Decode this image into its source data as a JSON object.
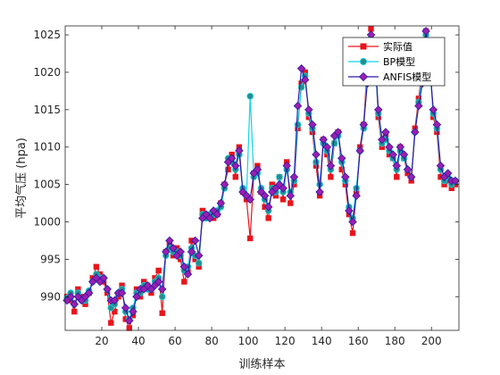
{
  "chart_data": {
    "type": "line",
    "xlabel": "训练样本",
    "ylabel": "平均气压 (hpa)",
    "xlim": [
      0,
      215
    ],
    "ylim": [
      985.5,
      1026.2
    ],
    "xticks": [
      20,
      40,
      60,
      80,
      100,
      120,
      140,
      160,
      180,
      200
    ],
    "yticks": [
      990,
      995,
      1000,
      1005,
      1010,
      1015,
      1020,
      1025
    ],
    "grid": false,
    "legend_position": "top-right",
    "series": [
      {
        "name": "实际值",
        "color": "#e8141c",
        "marker": "square",
        "line": "solid",
        "x": [
          1,
          3,
          5,
          7,
          9,
          11,
          13,
          15,
          17,
          19,
          21,
          23,
          25,
          27,
          29,
          31,
          33,
          35,
          37,
          39,
          41,
          43,
          45,
          47,
          49,
          51,
          53,
          55,
          57,
          59,
          61,
          63,
          65,
          67,
          69,
          71,
          73,
          75,
          77,
          79,
          81,
          83,
          85,
          87,
          89,
          91,
          93,
          95,
          97,
          99,
          101,
          103,
          105,
          107,
          109,
          111,
          113,
          115,
          117,
          119,
          121,
          123,
          125,
          127,
          129,
          131,
          133,
          135,
          137,
          139,
          141,
          143,
          145,
          147,
          149,
          151,
          153,
          155,
          157,
          159,
          161,
          163,
          165,
          167,
          169,
          171,
          173,
          175,
          177,
          179,
          181,
          183,
          185,
          187,
          189,
          191,
          193,
          195,
          197,
          199,
          201,
          203,
          205,
          207,
          209,
          211,
          213
        ],
        "values": [
          990.0,
          989.5,
          988.0,
          991.0,
          990.0,
          989.0,
          990.5,
          992.5,
          994.0,
          993.0,
          992.0,
          990.5,
          986.5,
          988.0,
          990.0,
          991.5,
          987.0,
          985.8,
          987.5,
          991.0,
          990.0,
          992.0,
          991.5,
          990.5,
          992.5,
          993.5,
          987.8,
          996.0,
          997.0,
          995.5,
          996.5,
          995.0,
          992.0,
          993.5,
          997.5,
          995.0,
          994.0,
          1001.5,
          1000.5,
          1001.0,
          1000.5,
          1001.0,
          1002.5,
          1005.0,
          1007.0,
          1009.0,
          1006.0,
          1010.0,
          1004.0,
          1003.0,
          997.8,
          1006.5,
          1007.5,
          1004.0,
          1002.0,
          1000.5,
          1005.0,
          1003.5,
          1006.0,
          1003.0,
          1008.0,
          1002.5,
          1005.0,
          1012.5,
          1018.5,
          1020.0,
          1014.0,
          1012.0,
          1007.5,
          1003.5,
          1011.0,
          1009.0,
          1006.0,
          1010.5,
          1012.0,
          1007.0,
          1005.0,
          1001.0,
          998.5,
          1004.0,
          1010.0,
          1013.0,
          1021.0,
          1025.8,
          1023.5,
          1014.0,
          1010.0,
          1011.5,
          1009.0,
          1008.5,
          1006.0,
          1010.0,
          1008.5,
          1006.5,
          1005.5,
          1012.5,
          1016.5,
          1020.5,
          1025.5,
          1022.0,
          1014.0,
          1012.0,
          1006.0,
          1005.0,
          1005.5,
          1004.5,
          1005.0
        ]
      },
      {
        "name": "BP模型",
        "color": "#11d4e8",
        "marker_color": "#2c8c8c",
        "marker": "circle",
        "line": "solid",
        "x": [
          1,
          3,
          5,
          7,
          9,
          11,
          13,
          15,
          17,
          19,
          21,
          23,
          25,
          27,
          29,
          31,
          33,
          35,
          37,
          39,
          41,
          43,
          45,
          47,
          49,
          51,
          53,
          55,
          57,
          59,
          61,
          63,
          65,
          67,
          69,
          71,
          73,
          75,
          77,
          79,
          81,
          83,
          85,
          87,
          89,
          91,
          93,
          95,
          97,
          99,
          101,
          103,
          105,
          107,
          109,
          111,
          113,
          115,
          117,
          119,
          121,
          123,
          125,
          127,
          129,
          131,
          133,
          135,
          137,
          139,
          141,
          143,
          145,
          147,
          149,
          151,
          153,
          155,
          157,
          159,
          161,
          163,
          165,
          167,
          169,
          171,
          173,
          175,
          177,
          179,
          181,
          183,
          185,
          187,
          189,
          191,
          193,
          195,
          197,
          199,
          201,
          203,
          205,
          207,
          209,
          211,
          213
        ],
        "values": [
          989.8,
          990.5,
          989.0,
          990.5,
          989.5,
          989.5,
          990.8,
          992.0,
          993.0,
          992.5,
          992.5,
          991.0,
          988.5,
          989.0,
          990.5,
          991.0,
          988.0,
          987.0,
          988.5,
          990.5,
          990.5,
          991.5,
          991.0,
          991.0,
          992.0,
          992.5,
          990.0,
          995.5,
          996.5,
          996.0,
          996.0,
          995.5,
          993.5,
          994.0,
          996.5,
          995.5,
          994.5,
          1001.0,
          1000.5,
          1001.0,
          1001.0,
          1001.5,
          1002.0,
          1004.5,
          1008.5,
          1008.0,
          1007.0,
          1009.0,
          1004.5,
          1003.5,
          1016.8,
          1006.0,
          1006.5,
          1004.5,
          1003.0,
          1001.5,
          1004.5,
          1004.0,
          1006.0,
          1004.0,
          1007.0,
          1004.0,
          1005.5,
          1013.0,
          1018.0,
          1019.5,
          1014.5,
          1012.5,
          1008.0,
          1005.0,
          1010.5,
          1009.5,
          1007.0,
          1010.5,
          1011.5,
          1008.0,
          1005.5,
          1002.0,
          1000.5,
          1004.5,
          1009.5,
          1012.5,
          1020.0,
          1024.5,
          1022.5,
          1014.5,
          1010.5,
          1011.0,
          1009.5,
          1008.5,
          1007.0,
          1009.5,
          1008.5,
          1007.0,
          1006.0,
          1012.0,
          1016.0,
          1019.5,
          1025.0,
          1021.0,
          1014.5,
          1012.5,
          1007.0,
          1005.5,
          1006.0,
          1005.0,
          1005.5
        ]
      },
      {
        "name": "ANFIS模型",
        "color": "#2b1aa8",
        "marker_color": "#9b1fb0",
        "marker": "diamond",
        "line": "solid",
        "x": [
          1,
          3,
          5,
          7,
          9,
          11,
          13,
          15,
          17,
          19,
          21,
          23,
          25,
          27,
          29,
          31,
          33,
          35,
          37,
          39,
          41,
          43,
          45,
          47,
          49,
          51,
          53,
          55,
          57,
          59,
          61,
          63,
          65,
          67,
          69,
          71,
          73,
          75,
          77,
          79,
          81,
          83,
          85,
          87,
          89,
          91,
          93,
          95,
          97,
          99,
          101,
          103,
          105,
          107,
          109,
          111,
          113,
          115,
          117,
          119,
          121,
          123,
          125,
          127,
          129,
          131,
          133,
          135,
          137,
          139,
          141,
          143,
          145,
          147,
          149,
          151,
          153,
          155,
          157,
          159,
          161,
          163,
          165,
          167,
          169,
          171,
          173,
          175,
          177,
          179,
          181,
          183,
          185,
          187,
          189,
          191,
          193,
          195,
          197,
          199,
          201,
          203,
          205,
          207,
          209,
          211,
          213
        ],
        "values": [
          989.5,
          990.0,
          989.0,
          990.0,
          989.5,
          990.0,
          990.5,
          992.0,
          992.5,
          992.0,
          992.5,
          991.0,
          989.5,
          989.5,
          990.5,
          990.5,
          988.5,
          986.8,
          988.0,
          990.0,
          991.0,
          991.0,
          991.5,
          991.0,
          991.5,
          992.0,
          991.0,
          996.0,
          997.5,
          996.5,
          995.5,
          996.0,
          994.0,
          993.0,
          996.0,
          997.5,
          995.5,
          1000.5,
          1001.0,
          1000.5,
          1001.5,
          1001.0,
          1002.5,
          1005.0,
          1008.0,
          1008.5,
          1007.5,
          1009.5,
          1004.0,
          1003.5,
          1003.0,
          1006.5,
          1007.0,
          1004.0,
          1003.5,
          1002.0,
          1004.0,
          1004.5,
          1005.0,
          1004.5,
          1007.5,
          1003.5,
          1006.0,
          1015.5,
          1020.5,
          1019.0,
          1015.0,
          1013.0,
          1009.0,
          1004.0,
          1011.0,
          1010.0,
          1007.5,
          1011.5,
          1012.0,
          1008.5,
          1006.0,
          1001.5,
          1000.0,
          1003.5,
          1009.5,
          1013.0,
          1018.5,
          1025.0,
          1023.0,
          1015.0,
          1011.0,
          1012.0,
          1010.0,
          1009.0,
          1007.5,
          1010.0,
          1009.0,
          1007.0,
          1006.0,
          1012.0,
          1015.5,
          1018.5,
          1025.5,
          1021.0,
          1015.0,
          1013.0,
          1007.5,
          1006.0,
          1006.5,
          1005.5,
          1005.5
        ]
      }
    ]
  }
}
